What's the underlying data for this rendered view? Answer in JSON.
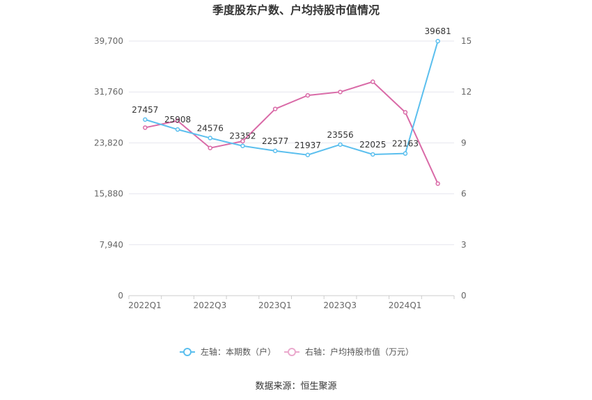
{
  "chart_data": {
    "type": "line",
    "title": "季度股东户数、户均持股市值情况",
    "x": [
      "2022Q1",
      "2022Q2",
      "2022Q3",
      "2022Q4",
      "2023Q1",
      "2023Q2",
      "2023Q3",
      "2023Q4",
      "2024Q1",
      "2024Q2"
    ],
    "x_tick_labels": [
      "2022Q1",
      "",
      "2022Q3",
      "",
      "2023Q1",
      "",
      "2023Q3",
      "",
      "2024Q1",
      ""
    ],
    "left_axis": {
      "ticks": [
        "0",
        "7,940",
        "15,880",
        "23,820",
        "31,760",
        "39,700"
      ],
      "ylim": [
        0,
        39700
      ]
    },
    "right_axis": {
      "ticks": [
        "0",
        "3",
        "6",
        "9",
        "12",
        "15"
      ],
      "ylim": [
        0,
        15
      ]
    },
    "series": [
      {
        "name": "左轴：本期数（户）",
        "axis": "left",
        "color": "#5bbfee",
        "values": [
          27457,
          25908,
          24576,
          23352,
          22577,
          21937,
          23556,
          22025,
          22163,
          39681
        ],
        "labels": [
          "27457",
          "25908",
          "24576",
          "23352",
          "22577",
          "21937",
          "23556",
          "22025",
          "22163",
          "39681"
        ]
      },
      {
        "name": "右轴：户均持股市值（万元）",
        "axis": "right",
        "color": "#d96aa7",
        "values": [
          9.9,
          10.3,
          8.7,
          9.1,
          11.0,
          11.8,
          12.0,
          12.6,
          10.8,
          6.6
        ]
      }
    ],
    "legend_position": "bottom",
    "grid": true
  },
  "source_text": "数据来源：恒生聚源"
}
